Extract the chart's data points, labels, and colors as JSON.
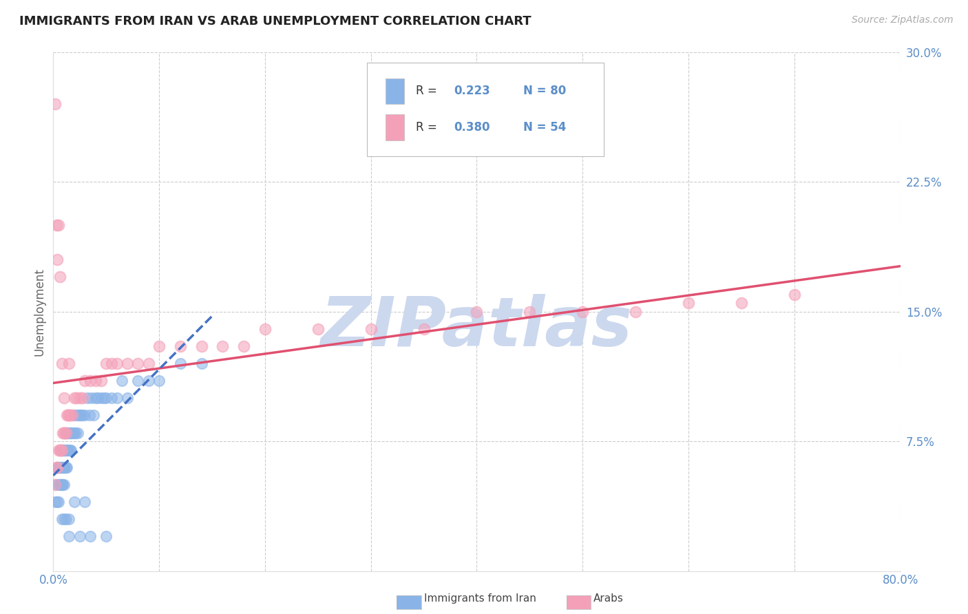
{
  "title": "IMMIGRANTS FROM IRAN VS ARAB UNEMPLOYMENT CORRELATION CHART",
  "source_text": "Source: ZipAtlas.com",
  "ylabel": "Unemployment",
  "xlim": [
    0.0,
    0.8
  ],
  "ylim": [
    0.0,
    0.3
  ],
  "yticks": [
    0.0,
    0.075,
    0.15,
    0.225,
    0.3
  ],
  "ytick_labels": [
    "",
    "7.5%",
    "15.0%",
    "22.5%",
    "30.0%"
  ],
  "xticks": [
    0.0,
    0.1,
    0.2,
    0.3,
    0.4,
    0.5,
    0.6,
    0.7,
    0.8
  ],
  "color_iran": "#8ab4e8",
  "color_arab": "#f4a0b8",
  "color_trend_iran": "#4472c4",
  "color_trend_arab": "#e05070",
  "background_color": "#ffffff",
  "grid_color": "#cccccc",
  "watermark_text": "ZIPatlas",
  "watermark_color": "#ccd8ee",
  "title_color": "#222222",
  "tick_label_color": "#5b8ec9",
  "legend_r_text": "R = ",
  "legend_r1_val": "0.223",
  "legend_n1_val": "N = 80",
  "legend_r2_val": "0.380",
  "legend_n2_val": "N = 54",
  "iran_x": [
    0.002,
    0.003,
    0.004,
    0.004,
    0.005,
    0.005,
    0.005,
    0.006,
    0.006,
    0.007,
    0.007,
    0.007,
    0.008,
    0.008,
    0.008,
    0.008,
    0.009,
    0.009,
    0.009,
    0.01,
    0.01,
    0.01,
    0.01,
    0.011,
    0.011,
    0.011,
    0.012,
    0.012,
    0.012,
    0.013,
    0.013,
    0.013,
    0.014,
    0.014,
    0.015,
    0.015,
    0.016,
    0.016,
    0.017,
    0.017,
    0.018,
    0.019,
    0.02,
    0.02,
    0.021,
    0.022,
    0.023,
    0.024,
    0.025,
    0.026,
    0.028,
    0.03,
    0.032,
    0.034,
    0.036,
    0.038,
    0.04,
    0.042,
    0.045,
    0.048,
    0.05,
    0.055,
    0.06,
    0.065,
    0.07,
    0.08,
    0.09,
    0.1,
    0.12,
    0.14,
    0.008,
    0.01,
    0.012,
    0.015,
    0.02,
    0.03,
    0.015,
    0.025,
    0.035,
    0.05
  ],
  "iran_y": [
    0.04,
    0.05,
    0.04,
    0.06,
    0.05,
    0.06,
    0.04,
    0.06,
    0.05,
    0.05,
    0.06,
    0.07,
    0.05,
    0.06,
    0.07,
    0.05,
    0.06,
    0.07,
    0.05,
    0.06,
    0.07,
    0.05,
    0.06,
    0.07,
    0.06,
    0.07,
    0.06,
    0.07,
    0.08,
    0.07,
    0.06,
    0.08,
    0.07,
    0.08,
    0.07,
    0.08,
    0.08,
    0.07,
    0.08,
    0.07,
    0.08,
    0.08,
    0.08,
    0.09,
    0.08,
    0.09,
    0.08,
    0.09,
    0.09,
    0.09,
    0.09,
    0.09,
    0.1,
    0.09,
    0.1,
    0.09,
    0.1,
    0.1,
    0.1,
    0.1,
    0.1,
    0.1,
    0.1,
    0.11,
    0.1,
    0.11,
    0.11,
    0.11,
    0.12,
    0.12,
    0.03,
    0.03,
    0.03,
    0.03,
    0.04,
    0.04,
    0.02,
    0.02,
    0.02,
    0.02
  ],
  "arab_x": [
    0.002,
    0.003,
    0.004,
    0.005,
    0.006,
    0.007,
    0.008,
    0.009,
    0.01,
    0.011,
    0.012,
    0.013,
    0.014,
    0.015,
    0.016,
    0.018,
    0.02,
    0.022,
    0.025,
    0.028,
    0.03,
    0.035,
    0.04,
    0.045,
    0.05,
    0.055,
    0.06,
    0.07,
    0.08,
    0.09,
    0.1,
    0.12,
    0.14,
    0.16,
    0.18,
    0.2,
    0.25,
    0.3,
    0.35,
    0.4,
    0.45,
    0.5,
    0.55,
    0.6,
    0.65,
    0.7,
    0.002,
    0.003,
    0.004,
    0.005,
    0.006,
    0.008,
    0.01,
    0.015
  ],
  "arab_y": [
    0.05,
    0.06,
    0.06,
    0.07,
    0.07,
    0.07,
    0.07,
    0.08,
    0.08,
    0.08,
    0.08,
    0.09,
    0.09,
    0.09,
    0.09,
    0.09,
    0.1,
    0.1,
    0.1,
    0.1,
    0.11,
    0.11,
    0.11,
    0.11,
    0.12,
    0.12,
    0.12,
    0.12,
    0.12,
    0.12,
    0.13,
    0.13,
    0.13,
    0.13,
    0.13,
    0.14,
    0.14,
    0.14,
    0.14,
    0.15,
    0.15,
    0.15,
    0.15,
    0.155,
    0.155,
    0.16,
    0.27,
    0.2,
    0.18,
    0.2,
    0.17,
    0.12,
    0.1,
    0.12
  ]
}
